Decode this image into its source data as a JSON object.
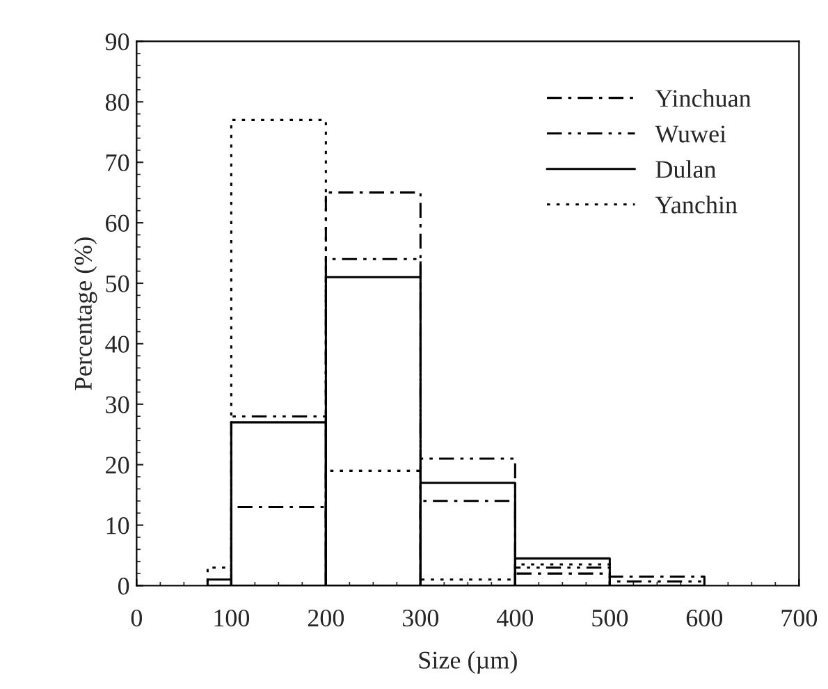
{
  "chart_data": {
    "type": "histogram",
    "xlabel": "Size (µm)",
    "ylabel": "Percentage (%)",
    "bins": [
      75,
      100,
      200,
      300,
      400,
      500,
      600
    ],
    "series": [
      {
        "name": "Yinchuan",
        "color": "#000000",
        "line_style": "dashdot",
        "values": [
          0,
          13,
          65,
          14,
          2,
          1.5
        ]
      },
      {
        "name": "Wuwei",
        "color": "#000000",
        "line_style": "dashdotdot",
        "values": [
          0,
          28,
          54,
          21,
          3,
          0.7
        ]
      },
      {
        "name": "Dulan",
        "color": "#000000",
        "line_style": "solid",
        "values": [
          1,
          27,
          51,
          17,
          4.5,
          0
        ]
      },
      {
        "name": "Yanchin",
        "color": "#000000",
        "line_style": "dotted",
        "values": [
          3,
          77,
          19,
          1,
          3.5,
          0
        ]
      }
    ],
    "xlim": [
      0,
      700
    ],
    "xticks": [
      0,
      100,
      200,
      300,
      400,
      500,
      600,
      700
    ],
    "ylim": [
      0,
      90
    ],
    "yticks": [
      0,
      10,
      20,
      30,
      40,
      50,
      60,
      70,
      80,
      90
    ],
    "legend": "top right",
    "grid": false
  }
}
